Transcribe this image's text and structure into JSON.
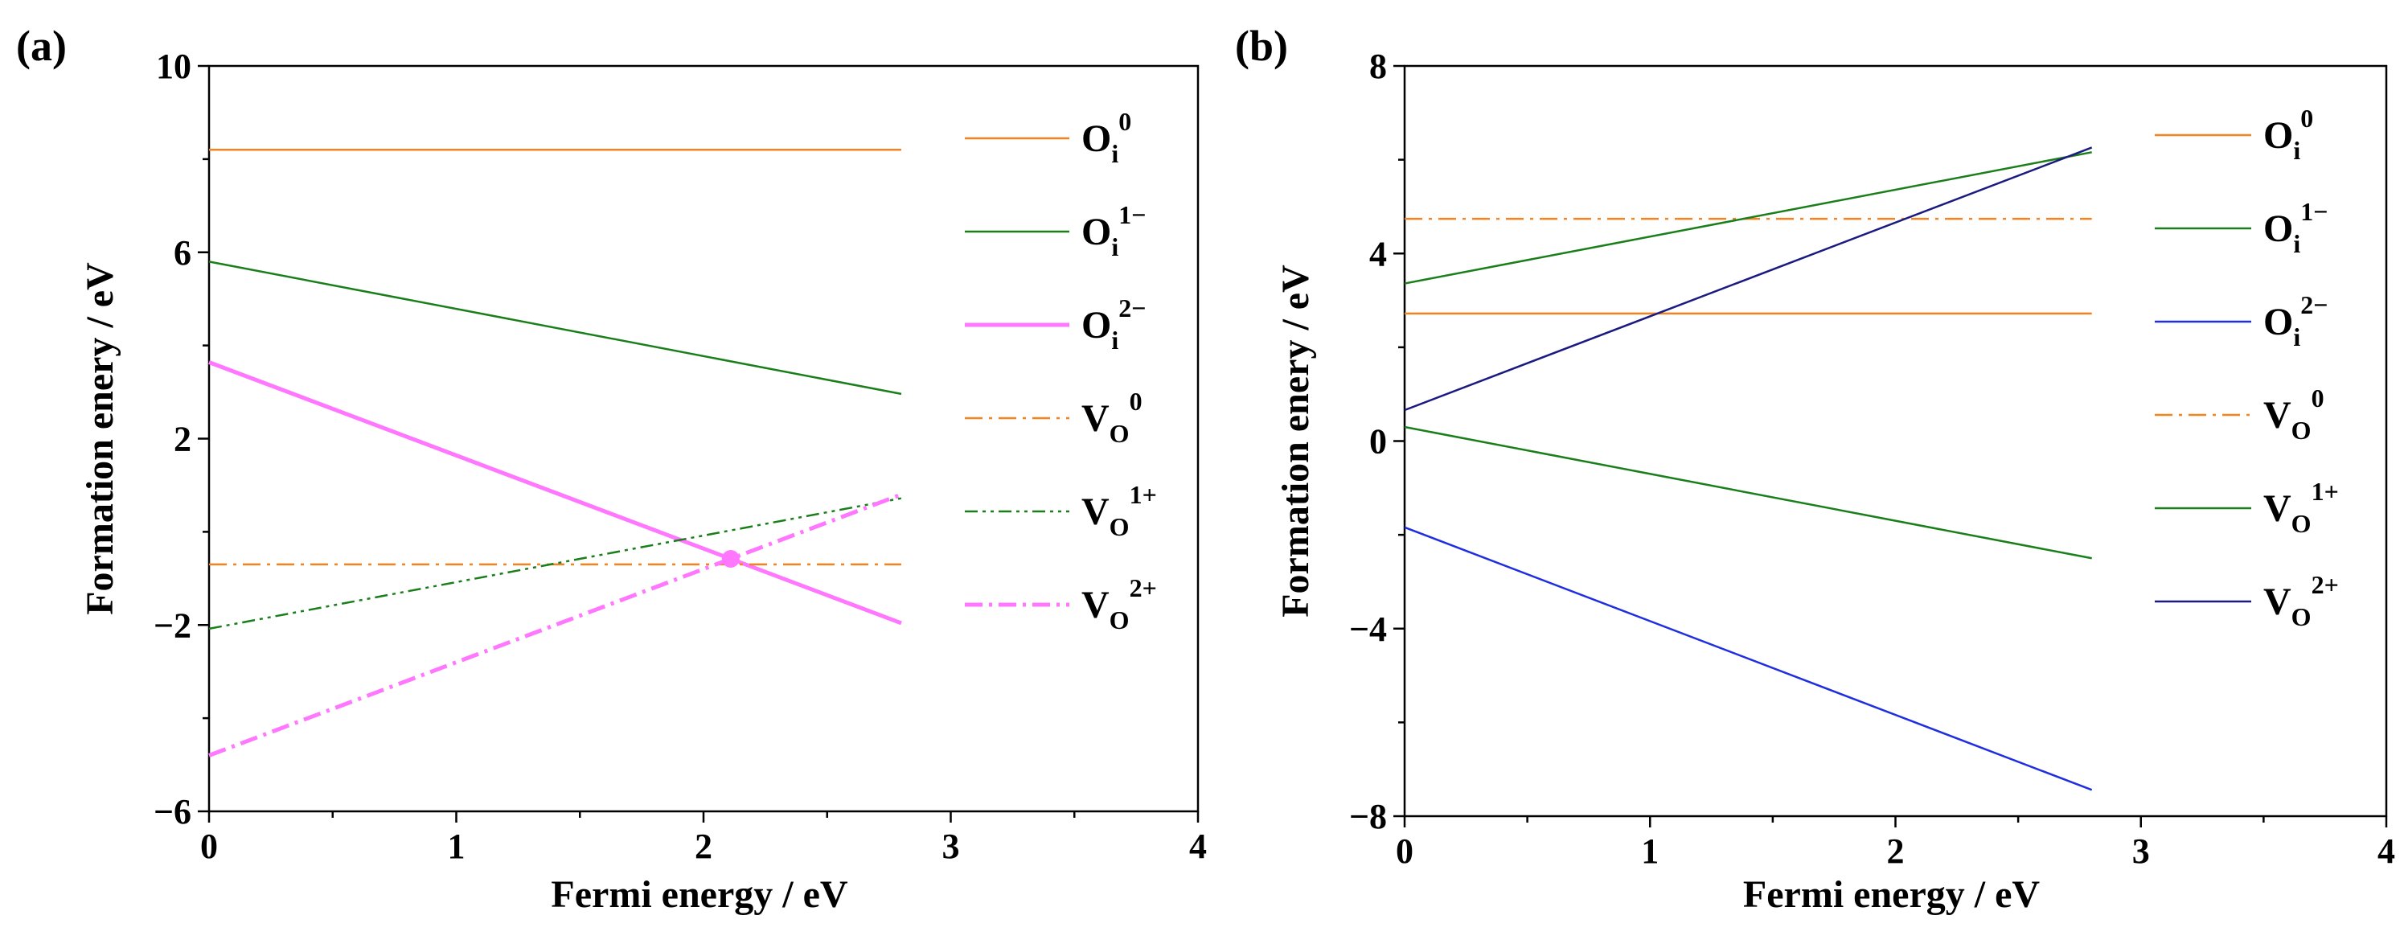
{
  "chart_data": [
    {
      "panel_label": "(a)",
      "type": "line",
      "xlabel": "Fermi energy / eV",
      "ylabel": "Formation enery / eV",
      "xlim": [
        0,
        4
      ],
      "ylim": [
        -6,
        10
      ],
      "xticks": [
        "0",
        "1",
        "2",
        "3",
        "4"
      ],
      "yticks": [
        "10",
        "6",
        "2",
        "−2",
        "−6"
      ],
      "series": [
        {
          "name": "Oi0",
          "base": "O",
          "sub": "i",
          "sup": "0",
          "color": "#F5821F",
          "style": "solid",
          "width": 2.5,
          "x": [
            0,
            2.8
          ],
          "y": [
            8.2,
            8.2
          ]
        },
        {
          "name": "Oi1−",
          "base": "O",
          "sub": "i",
          "sup": "1−",
          "color": "#1A7F1A",
          "style": "solid",
          "width": 2.5,
          "x": [
            0,
            2.8
          ],
          "y": [
            5.8,
            2.96
          ]
        },
        {
          "name": "Oi2−",
          "base": "O",
          "sub": "i",
          "sup": "2−",
          "color": "#FF77FF",
          "style": "solid",
          "width": 5,
          "x": [
            0,
            2.8
          ],
          "y": [
            3.64,
            -1.96
          ]
        },
        {
          "name": "VO0",
          "base": "V",
          "sub": "O",
          "sup": "0",
          "color": "#F5821F",
          "style": "dashdot",
          "width": 2.5,
          "x": [
            0,
            2.8
          ],
          "y": [
            -0.7,
            -0.7
          ]
        },
        {
          "name": "VO1+",
          "base": "V",
          "sub": "O",
          "sup": "1+",
          "color": "#1A7F1A",
          "style": "dashdotdot",
          "width": 2.5,
          "x": [
            0,
            2.8
          ],
          "y": [
            -2.08,
            0.72
          ]
        },
        {
          "name": "VO2+",
          "base": "V",
          "sub": "O",
          "sup": "2+",
          "color": "#FF77FF",
          "style": "dashdot",
          "width": 5,
          "x": [
            0,
            2.8
          ],
          "y": [
            -4.8,
            0.8
          ]
        }
      ],
      "markers": [
        {
          "x": 2.11,
          "y": -0.58,
          "color": "#FF77FF"
        }
      ]
    },
    {
      "panel_label": "(b)",
      "type": "line",
      "xlabel": "Fermi energy / eV",
      "ylabel": "Formation enery / eV",
      "xlim": [
        0,
        4
      ],
      "ylim": [
        -8,
        8
      ],
      "xticks": [
        "0",
        "1",
        "2",
        "3",
        "4"
      ],
      "yticks": [
        "8",
        "4",
        "0",
        "−4",
        "−8"
      ],
      "series": [
        {
          "name": "Oi0",
          "base": "O",
          "sub": "i",
          "sup": "0",
          "color": "#F5821F",
          "style": "solid",
          "width": 2.5,
          "x": [
            0,
            2.8
          ],
          "y": [
            2.72,
            2.72
          ]
        },
        {
          "name": "Oi1−",
          "base": "O",
          "sub": "i",
          "sup": "1−",
          "color": "#1A7F1A",
          "style": "solid",
          "width": 2.5,
          "x": [
            0,
            2.8
          ],
          "y": [
            0.3,
            -2.5
          ]
        },
        {
          "name": "Oi2−",
          "base": "O",
          "sub": "i",
          "sup": "2−",
          "color": "#1F2FE0",
          "style": "solid",
          "width": 2.5,
          "x": [
            0,
            2.8
          ],
          "y": [
            -1.84,
            -7.44
          ]
        },
        {
          "name": "VO0",
          "base": "V",
          "sub": "O",
          "sup": "0",
          "color": "#F5821F",
          "style": "dashdot",
          "width": 2.5,
          "x": [
            0,
            2.8
          ],
          "y": [
            4.74,
            4.74
          ]
        },
        {
          "name": "VO1+",
          "base": "V",
          "sub": "O",
          "sup": "1+",
          "color": "#1A7F1A",
          "style": "solid",
          "width": 2.5,
          "x": [
            0,
            2.8
          ],
          "y": [
            3.36,
            6.16
          ]
        },
        {
          "name": "VO2+",
          "base": "V",
          "sub": "O",
          "sup": "2+",
          "color": "#1A1A80",
          "style": "solid",
          "width": 2.5,
          "x": [
            0,
            2.8
          ],
          "y": [
            0.66,
            6.26
          ]
        }
      ],
      "markers": []
    }
  ]
}
